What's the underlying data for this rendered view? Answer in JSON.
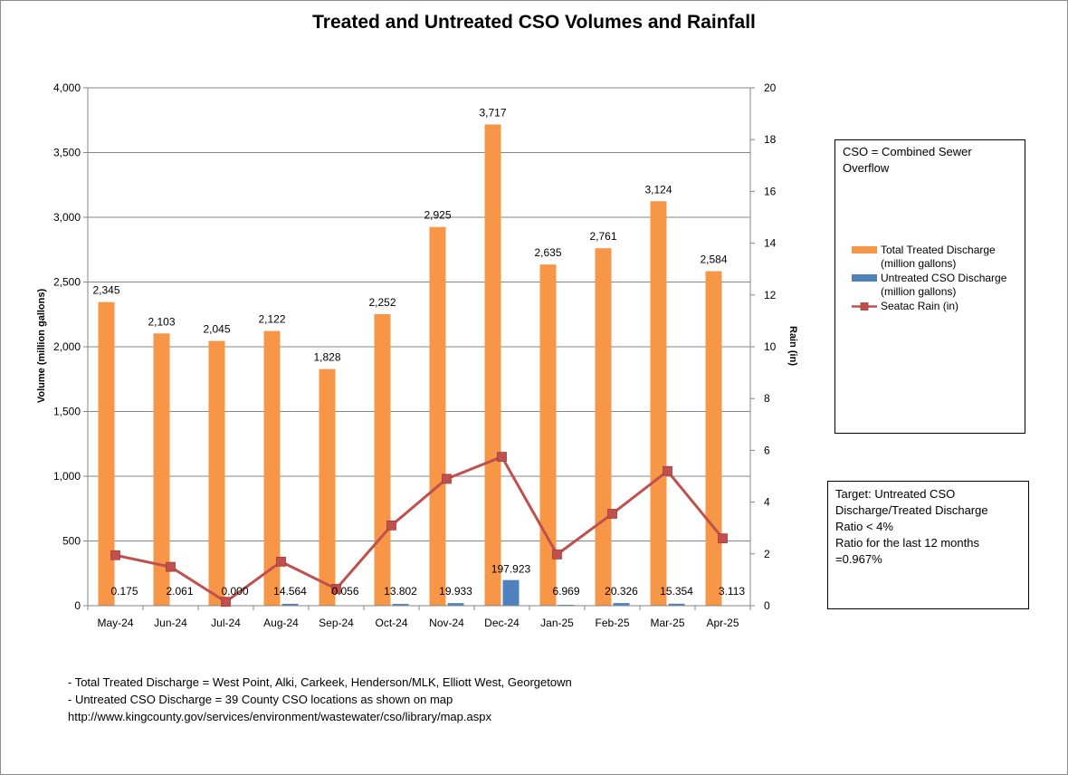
{
  "chart_data": {
    "type": "bar",
    "title": "Treated and Untreated CSO Volumes and Rainfall",
    "categories": [
      "May-24",
      "Jun-24",
      "Jul-24",
      "Aug-24",
      "Sep-24",
      "Oct-24",
      "Nov-24",
      "Dec-24",
      "Jan-25",
      "Feb-25",
      "Mar-25",
      "Apr-25"
    ],
    "ylabel": "Volume (million gallons)",
    "ylim": [
      0,
      4000
    ],
    "y_ticks": [
      "0",
      "500",
      "1,000",
      "1,500",
      "2,000",
      "2,500",
      "3,000",
      "3,500",
      "4,000"
    ],
    "y2label": "Rain (in)",
    "y2lim": [
      0,
      20
    ],
    "y2_ticks": [
      "0",
      "2",
      "4",
      "6",
      "8",
      "10",
      "12",
      "14",
      "16",
      "18",
      "20"
    ],
    "grid": true,
    "legend_position": "right",
    "series": [
      {
        "name": "Total Treated Discharge (million gallons)",
        "type": "bar",
        "axis": "left",
        "color": "#f79646",
        "values": [
          2345,
          2103,
          2045,
          2122,
          1828,
          2252,
          2925,
          3717,
          2635,
          2761,
          3124,
          2584
        ],
        "labels": [
          "2,345",
          "2,103",
          "2,045",
          "2,122",
          "1,828",
          "2,252",
          "2,925",
          "3,717",
          "2,635",
          "2,761",
          "3,124",
          "2,584"
        ]
      },
      {
        "name": "Untreated CSO Discharge (million gallons)",
        "type": "bar",
        "axis": "left",
        "color": "#4f81bd",
        "values": [
          0.175,
          2.061,
          0.0,
          14.564,
          0.056,
          13.802,
          19.933,
          197.923,
          6.969,
          20.326,
          15.354,
          3.113
        ],
        "labels": [
          "0.175",
          "2.061",
          "0.000",
          "14.564",
          "0.056",
          "13.802",
          "19.933",
          "197.923",
          "6.969",
          "20.326",
          "15.354",
          "3.113"
        ]
      },
      {
        "name": "Seatac Rain (in)",
        "type": "line",
        "axis": "right",
        "color": "#c0504d",
        "values": [
          1.95,
          1.5,
          0.15,
          1.7,
          0.65,
          3.1,
          4.9,
          5.75,
          1.98,
          3.55,
          5.2,
          2.6
        ]
      }
    ]
  },
  "legend_note": "CSO = Combined Sewer Overflow",
  "target_box": {
    "line1": "Target: Untreated CSO Discharge/Treated Discharge",
    "line2": "Ratio < 4%",
    "line3": "Ratio for the last 12 months =0.967%"
  },
  "footnotes": {
    "line1": "- Total Treated Discharge = West Point, Alki, Carkeek, Henderson/MLK, Elliott West, Georgetown",
    "line2": "- Untreated CSO Discharge = 39  County CSO locations as shown on map",
    "line3": "http://www.kingcounty.gov/services/environment/wastewater/cso/library/map.aspx"
  }
}
